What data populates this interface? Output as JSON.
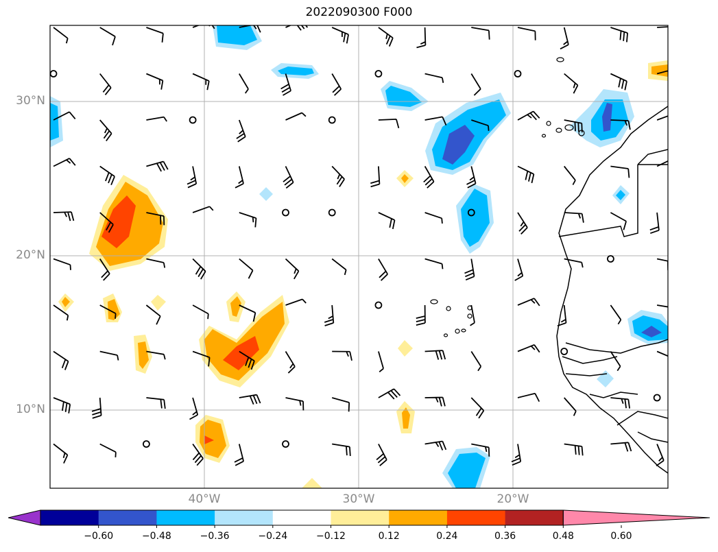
{
  "title": "2022090300 F000",
  "lat_labels": [
    "30°N",
    "20°N",
    "10°N"
  ],
  "lon_labels": [
    "40°W",
    "30°W",
    "20°W"
  ],
  "colorbar": {
    "colors": [
      "#9933cc",
      "#000099",
      "#3355cc",
      "#00bbff",
      "#b3e5fc",
      "#ffffff",
      "#ffee99",
      "#ffaa00",
      "#ff4400",
      "#b22222",
      "#ff88aa"
    ],
    "tick_labels": [
      "−0.60",
      "−0.48",
      "−0.36",
      "−0.24",
      "−0.12",
      "0.12",
      "0.24",
      "0.36",
      "0.48",
      "0.60"
    ]
  },
  "map": {
    "lon_range": [
      -50,
      -10
    ],
    "lat_range": [
      5,
      35
    ],
    "gridlines": true,
    "features": [
      "wind-barbs",
      "filled-contours",
      "coastline"
    ]
  }
}
